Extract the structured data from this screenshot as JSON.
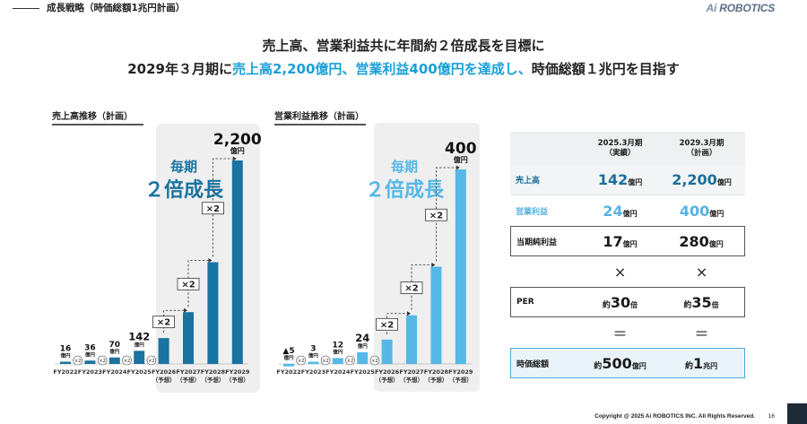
{
  "header": {
    "title": "成長戦略（時価総額1兆円計画）",
    "logo_mark": "Ai",
    "logo_text": "ROBOTICS"
  },
  "headline": {
    "line1": "売上高、営業利益共に年間約２倍成長を目標に",
    "line2_a": "2029年３月期に",
    "line2_b": "売上高2,200億円、営業利益400億円を達成し、",
    "line2_c": "時価総額１兆円を目指す"
  },
  "charts": [
    {
      "section_title": "売上高推移（計画）",
      "callout_top": "毎期",
      "callout_main": "２倍成長",
      "multiplier_label": "×2",
      "bar_color": "#1a73a0",
      "callout_color": "#1a73a0"
    },
    {
      "section_title": "営業利益推移（計画）",
      "callout_top": "毎期",
      "callout_main": "２倍成長",
      "multiplier_label": "×2",
      "bar_color": "#56b8e6",
      "callout_color": "#56b8e6"
    }
  ],
  "chart_data": [
    {
      "type": "bar",
      "title": "売上高推移（計画）",
      "categories": [
        "FY2022",
        "FY2023",
        "FY2024",
        "FY2025",
        "FY2026\n（予想）",
        "FY2027\n（予想）",
        "FY2028\n（予想）",
        "FY2029\n（予想）"
      ],
      "values": [
        16,
        36,
        70,
        142,
        280,
        560,
        1100,
        2200
      ],
      "value_labels": [
        "16",
        "36",
        "70",
        "142",
        "",
        "",
        "",
        "2,200"
      ],
      "unit": "億円",
      "annotation": "×2"
    },
    {
      "type": "bar",
      "title": "営業利益推移（計画）",
      "categories": [
        "FY2022",
        "FY2023",
        "FY2024",
        "FY2025",
        "FY2026\n（予想）",
        "FY2027\n（予想）",
        "FY2028\n（予想）",
        "FY2029\n（予想）"
      ],
      "values": [
        -5,
        3,
        12,
        24,
        50,
        100,
        200,
        400
      ],
      "value_labels": [
        "▲5",
        "3",
        "12",
        "24",
        "",
        "",
        "",
        "400"
      ],
      "unit": "億円",
      "annotation": "×2"
    }
  ],
  "table": {
    "col1_l1": "2025.3月期",
    "col1_l2": "（実績）",
    "col2_l1": "2029.3月期",
    "col2_l2": "（計画）",
    "sales_label": "売上高",
    "sales_v1": "142",
    "sales_v2": "2,200",
    "op_label": "営業利益",
    "op_v1": "24",
    "op_v2": "400",
    "net_label": "当期純利益",
    "net_v1": "17",
    "net_v2": "280",
    "unit_oku": "億円",
    "times": "×",
    "per_label": "PER",
    "per_pre": "約",
    "per_v1": "30",
    "per_v2": "35",
    "per_unit": "倍",
    "eq": "＝",
    "mc_label": "時価総額",
    "mc_pre": "約",
    "mc_v1": "500",
    "mc_unit1": "億円",
    "mc_v2": "1",
    "mc_unit2": "兆円"
  },
  "footer": {
    "copyright": "Copyright @ 2025 Ai ROBOTICS INC. All Rights Reserved.",
    "page": "16"
  }
}
